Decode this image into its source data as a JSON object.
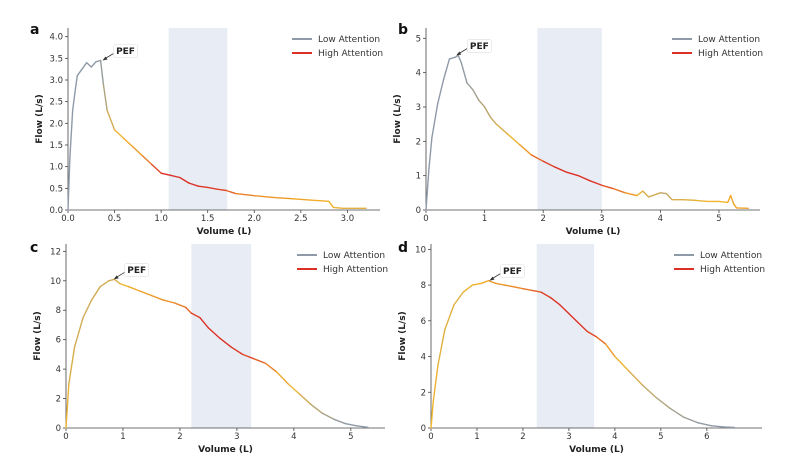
{
  "chart_data": [
    {
      "type": "line",
      "panel": "a",
      "xlabel": "Volume (L)",
      "ylabel": "Flow (L/s)",
      "xlim": [
        0,
        3.35
      ],
      "ylim": [
        0,
        4.2
      ],
      "xticks": [
        0.0,
        0.5,
        1.0,
        1.5,
        2.0,
        2.5,
        3.0
      ],
      "yticks": [
        0.0,
        0.5,
        1.0,
        1.5,
        2.0,
        2.5,
        3.0,
        3.5,
        4.0
      ],
      "tick_decimals": 1,
      "shaded_region": [
        1.08,
        1.71
      ],
      "annotation": {
        "text": "PEF",
        "x": 0.36,
        "y": 3.45
      },
      "legend": [
        "Low Attention",
        "High Attention"
      ],
      "x": [
        0,
        0.02,
        0.05,
        0.08,
        0.1,
        0.15,
        0.2,
        0.25,
        0.3,
        0.35,
        0.38,
        0.42,
        0.5,
        0.6,
        0.7,
        0.8,
        0.9,
        1.0,
        1.1,
        1.2,
        1.3,
        1.4,
        1.5,
        1.6,
        1.7,
        1.8,
        2.0,
        2.2,
        2.4,
        2.6,
        2.8,
        2.85,
        2.95,
        3.2
      ],
      "y": [
        0,
        1.2,
        2.3,
        2.8,
        3.1,
        3.25,
        3.4,
        3.3,
        3.42,
        3.45,
        2.9,
        2.3,
        1.85,
        1.65,
        1.45,
        1.25,
        1.05,
        0.85,
        0.8,
        0.75,
        0.62,
        0.55,
        0.52,
        0.48,
        0.45,
        0.38,
        0.33,
        0.29,
        0.26,
        0.23,
        0.2,
        0.06,
        0.04,
        0.04
      ],
      "attention": [
        0.3,
        0.3,
        0.3,
        0.3,
        0.3,
        0.3,
        0.3,
        0.3,
        0.3,
        0.3,
        0.35,
        0.45,
        0.55,
        0.62,
        0.66,
        0.7,
        0.85,
        1.0,
        1.0,
        1.0,
        1.0,
        1.0,
        0.97,
        0.95,
        0.92,
        0.8,
        0.7,
        0.7,
        0.66,
        0.63,
        0.62,
        0.6,
        0.55,
        0.55
      ]
    },
    {
      "type": "line",
      "panel": "b",
      "xlabel": "Volume (L)",
      "ylabel": "Flow (L/s)",
      "xlim": [
        0,
        5.7
      ],
      "ylim": [
        0,
        5.3
      ],
      "xticks": [
        0,
        1,
        2,
        3,
        4,
        5
      ],
      "yticks": [
        0,
        1,
        2,
        3,
        4,
        5
      ],
      "tick_decimals": 0,
      "shaded_region": [
        1.9,
        3.0
      ],
      "annotation": {
        "text": "PEF",
        "x": 0.5,
        "y": 4.5
      },
      "legend": [
        "Low Attention",
        "High Attention"
      ],
      "x": [
        0,
        0.05,
        0.1,
        0.2,
        0.3,
        0.4,
        0.5,
        0.55,
        0.6,
        0.7,
        0.8,
        0.9,
        1.0,
        1.1,
        1.2,
        1.4,
        1.6,
        1.8,
        2.0,
        2.2,
        2.4,
        2.6,
        2.8,
        3.0,
        3.2,
        3.4,
        3.6,
        3.7,
        3.8,
        4.0,
        4.1,
        4.2,
        4.4,
        4.6,
        4.8,
        5.0,
        5.15,
        5.2,
        5.25,
        5.3,
        5.5
      ],
      "y": [
        0,
        1.2,
        2.1,
        3.1,
        3.8,
        4.4,
        4.45,
        4.5,
        4.3,
        3.7,
        3.5,
        3.2,
        3.0,
        2.7,
        2.5,
        2.2,
        1.9,
        1.6,
        1.42,
        1.25,
        1.1,
        1.0,
        0.85,
        0.72,
        0.62,
        0.5,
        0.42,
        0.55,
        0.38,
        0.5,
        0.48,
        0.3,
        0.3,
        0.28,
        0.25,
        0.25,
        0.22,
        0.42,
        0.18,
        0.06,
        0.05
      ],
      "attention": [
        0.3,
        0.3,
        0.3,
        0.3,
        0.3,
        0.3,
        0.3,
        0.3,
        0.3,
        0.32,
        0.35,
        0.38,
        0.42,
        0.45,
        0.5,
        0.55,
        0.62,
        0.75,
        0.9,
        1.0,
        1.0,
        1.0,
        1.0,
        0.95,
        0.85,
        0.7,
        0.65,
        0.5,
        0.55,
        0.45,
        0.45,
        0.5,
        0.55,
        0.55,
        0.6,
        0.6,
        0.6,
        0.65,
        0.65,
        0.65,
        0.65
      ]
    },
    {
      "type": "line",
      "panel": "c",
      "xlabel": "Volume (L)",
      "ylabel": "Flow (L/s)",
      "xlim": [
        0,
        5.6
      ],
      "ylim": [
        0,
        12.5
      ],
      "xticks": [
        0,
        1,
        2,
        3,
        4,
        5
      ],
      "yticks": [
        0,
        2,
        4,
        6,
        8,
        10,
        12
      ],
      "tick_decimals": 0,
      "shaded_region": [
        2.2,
        3.25
      ],
      "annotation": {
        "text": "PEF",
        "x": 0.82,
        "y": 10.1
      },
      "legend": [
        "Low Attention",
        "High Attention"
      ],
      "x": [
        0,
        0.05,
        0.15,
        0.3,
        0.45,
        0.6,
        0.75,
        0.85,
        0.95,
        1.1,
        1.3,
        1.5,
        1.7,
        1.9,
        2.1,
        2.2,
        2.35,
        2.5,
        2.7,
        2.9,
        3.1,
        3.3,
        3.5,
        3.7,
        3.9,
        4.1,
        4.3,
        4.5,
        4.7,
        4.9,
        5.1,
        5.3
      ],
      "y": [
        0,
        3.0,
        5.5,
        7.5,
        8.7,
        9.6,
        10.0,
        10.1,
        9.8,
        9.6,
        9.3,
        9.0,
        8.7,
        8.5,
        8.2,
        7.8,
        7.5,
        6.8,
        6.1,
        5.5,
        5.0,
        4.7,
        4.4,
        3.8,
        3.0,
        2.3,
        1.6,
        1.0,
        0.6,
        0.3,
        0.15,
        0.05
      ],
      "attention": [
        0.6,
        0.55,
        0.5,
        0.5,
        0.5,
        0.5,
        0.5,
        0.5,
        0.55,
        0.62,
        0.66,
        0.68,
        0.7,
        0.72,
        0.8,
        0.9,
        1.0,
        1.0,
        1.0,
        1.0,
        0.95,
        0.9,
        0.8,
        0.7,
        0.6,
        0.55,
        0.45,
        0.4,
        0.35,
        0.3,
        0.3,
        0.3
      ]
    },
    {
      "type": "line",
      "panel": "d",
      "xlabel": "Volume (L)",
      "ylabel": "Flow (L/s)",
      "xlim": [
        0,
        7.2
      ],
      "ylim": [
        0,
        10.3
      ],
      "xticks": [
        0,
        1,
        2,
        3,
        4,
        5,
        6
      ],
      "yticks": [
        0,
        2,
        4,
        6,
        8,
        10
      ],
      "tick_decimals": 0,
      "shaded_region": [
        2.3,
        3.55
      ],
      "annotation": {
        "text": "PEF",
        "x": 1.25,
        "y": 8.25
      },
      "legend": [
        "Low Attention",
        "High Attention"
      ],
      "x": [
        0,
        0.05,
        0.15,
        0.3,
        0.5,
        0.7,
        0.9,
        1.1,
        1.25,
        1.4,
        1.6,
        1.8,
        2.0,
        2.2,
        2.4,
        2.6,
        2.8,
        3.0,
        3.2,
        3.4,
        3.6,
        3.8,
        4.0,
        4.3,
        4.6,
        4.9,
        5.2,
        5.5,
        5.8,
        6.1,
        6.4,
        6.6
      ],
      "y": [
        0,
        1.5,
        3.5,
        5.5,
        6.9,
        7.6,
        8.0,
        8.1,
        8.25,
        8.1,
        8.0,
        7.9,
        7.8,
        7.7,
        7.6,
        7.3,
        6.9,
        6.4,
        5.9,
        5.4,
        5.1,
        4.7,
        4.0,
        3.2,
        2.4,
        1.7,
        1.1,
        0.6,
        0.3,
        0.12,
        0.05,
        0.03
      ],
      "attention": [
        0.6,
        0.6,
        0.55,
        0.55,
        0.55,
        0.55,
        0.6,
        0.62,
        0.65,
        0.68,
        0.7,
        0.72,
        0.75,
        0.82,
        0.9,
        1.0,
        1.0,
        1.0,
        1.0,
        0.95,
        0.9,
        0.75,
        0.62,
        0.55,
        0.48,
        0.42,
        0.38,
        0.35,
        0.32,
        0.3,
        0.3,
        0.3
      ]
    }
  ],
  "colors": {
    "low": "#8e9aa8",
    "mid": "#f2b52a",
    "high": "#dc3027",
    "shade": "#e8edf5"
  }
}
